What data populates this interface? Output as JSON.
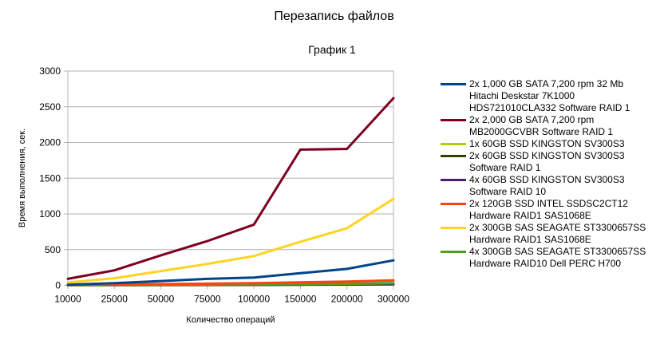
{
  "chart_data": {
    "type": "line",
    "title": "Перезапись файлов",
    "subtitle": "График 1",
    "xlabel": "Количество операций",
    "ylabel": "Время выполнения, сек.",
    "categories": [
      "10000",
      "25000",
      "50000",
      "75000",
      "100000",
      "150000",
      "200000",
      "300000"
    ],
    "yticks": [
      "0",
      "500",
      "1000",
      "1500",
      "2000",
      "2500",
      "3000"
    ],
    "ylim": [
      0,
      3000
    ],
    "grid": true,
    "legend_position": "right",
    "series": [
      {
        "name": "2x 1,000 GB SATA 7,200 rpm 32 Mb Hitachi Deskstar 7K1000 HDS721010CLA332 Software RAID 1",
        "color": "#004586",
        "values": [
          10,
          30,
          60,
          90,
          110,
          170,
          230,
          350
        ]
      },
      {
        "name": "2x 2,000 GB SATA 7,200 rpm MB2000GCVBR Software RAID 1",
        "color": "#7e0021",
        "values": [
          90,
          210,
          420,
          620,
          850,
          1900,
          1910,
          2620
        ]
      },
      {
        "name": "1x 60GB SSD KINGSTON SV300S3",
        "color": "#aecf00",
        "values": [
          2,
          3,
          4,
          5,
          6,
          8,
          10,
          14
        ]
      },
      {
        "name": "2x 60GB SSD KINGSTON SV300S3 Software RAID 1",
        "color": "#314004",
        "values": [
          3,
          4,
          5,
          6,
          7,
          9,
          11,
          15
        ]
      },
      {
        "name": "4x 60GB SSD KINGSTON SV300S3 Software RAID 10",
        "color": "#4b1f6f",
        "values": [
          4,
          5,
          6,
          8,
          9,
          12,
          14,
          18
        ]
      },
      {
        "name": "2x 120GB SSD INTEL SSDSC2CT12 Hardware RAID1 SAS1068E",
        "color": "#ff420e",
        "values": [
          8,
          12,
          18,
          24,
          30,
          42,
          52,
          70
        ]
      },
      {
        "name": "2x 300GB SAS SEAGATE ST3300657SS Hardware RAID1 SAS1068E",
        "color": "#ffd320",
        "values": [
          40,
          100,
          200,
          300,
          410,
          610,
          800,
          1210
        ]
      },
      {
        "name": "4x 300GB SAS SEAGATE ST3300657SS Hardware RAID10 Dell PERC H700",
        "color": "#579d1c",
        "values": [
          5,
          7,
          9,
          11,
          13,
          17,
          21,
          28
        ]
      },
      {
        "name": "",
        "color": "#83caff",
        "values": [
          6,
          9,
          13,
          17,
          20,
          28,
          36,
          50
        ]
      }
    ]
  },
  "legend": {
    "items": [
      {
        "label": "2x 1,000 GB SATA 7,200 rpm 32 Mb\nHitachi Deskstar 7K1000\nHDS721010CLA332 Software RAID 1",
        "color": "#004586"
      },
      {
        "label": "2x 2,000 GB SATA 7,200 rpm\nMB2000GCVBR Software RAID 1",
        "color": "#7e0021"
      },
      {
        "label": "1x 60GB SSD KINGSTON SV300S3",
        "color": "#aecf00"
      },
      {
        "label": "2x 60GB SSD KINGSTON SV300S3\nSoftware RAID 1",
        "color": "#314004"
      },
      {
        "label": "4x 60GB SSD KINGSTON SV300S3\nSoftware RAID 10",
        "color": "#4b1f6f"
      },
      {
        "label": "2x 120GB SSD INTEL SSDSC2CT12\nHardware RAID1 SAS1068E",
        "color": "#ff420e"
      },
      {
        "label": "2x 300GB SAS SEAGATE ST3300657SS\nHardware RAID1 SAS1068E",
        "color": "#ffd320"
      },
      {
        "label": "4x 300GB SAS SEAGATE ST3300657SS\nHardware RAID10 Dell PERC H700",
        "color": "#579d1c"
      }
    ]
  }
}
